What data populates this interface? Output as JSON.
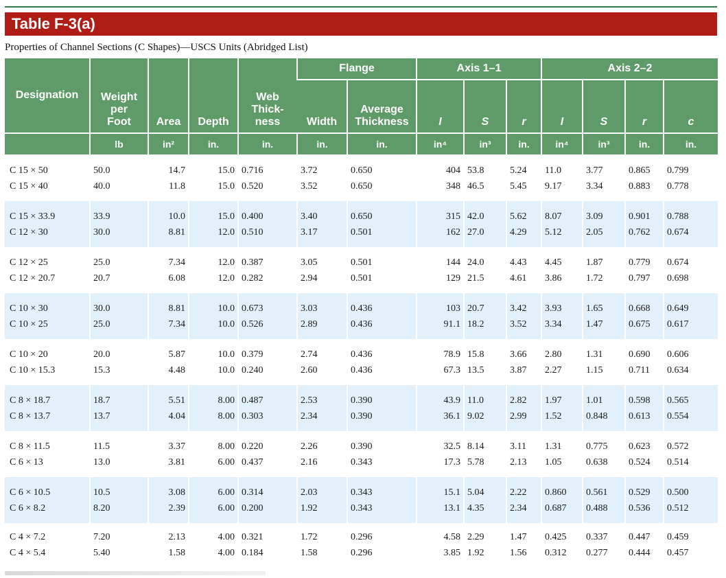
{
  "table_title": "Table F-3(a)",
  "caption": "Properties of Channel Sections (C Shapes)—USCS Units (Abridged List)",
  "headers": {
    "designation": "Designation",
    "weight": [
      "Weight",
      "per",
      "Foot"
    ],
    "area": "Area",
    "depth": "Depth",
    "web": [
      "Web",
      "Thick-",
      "ness"
    ],
    "flange_group": "Flange",
    "flange_width": "Width",
    "flange_thickness": [
      "Average",
      "Thickness"
    ],
    "axis11_group": "Axis 1–1",
    "axis22_group": "Axis 2–2",
    "I": "I",
    "S": "S",
    "r": "r",
    "c": "c"
  },
  "units": [
    "lb",
    "in²",
    "in.",
    "in.",
    "in.",
    "in.",
    "in⁴",
    "in³",
    "in.",
    "in⁴",
    "in³",
    "in.",
    "in."
  ],
  "rows": [
    {
      "band": "white",
      "lines": [
        [
          "C 15 × 50",
          "50.0",
          "14.7",
          "15.0",
          "0.716",
          "3.72",
          "0.650",
          "404",
          "53.8",
          "5.24",
          "11.0",
          "3.77",
          "0.865",
          "0.799"
        ],
        [
          "C 15 × 40",
          "40.0",
          "11.8",
          "15.0",
          "0.520",
          "3.52",
          "0.650",
          "348",
          "46.5",
          "5.45",
          "9.17",
          "3.34",
          "0.883",
          "0.778"
        ]
      ]
    },
    {
      "band": "blue",
      "lines": [
        [
          "C 15 × 33.9",
          "33.9",
          "10.0",
          "15.0",
          "0.400",
          "3.40",
          "0.650",
          "315",
          "42.0",
          "5.62",
          "8.07",
          "3.09",
          "0.901",
          "0.788"
        ],
        [
          "C 12 × 30",
          "30.0",
          "8.81",
          "12.0",
          "0.510",
          "3.17",
          "0.501",
          "162",
          "27.0",
          "4.29",
          "5.12",
          "2.05",
          "0.762",
          "0.674"
        ]
      ]
    },
    {
      "band": "white",
      "lines": [
        [
          "C 12 × 25",
          "25.0",
          "7.34",
          "12.0",
          "0.387",
          "3.05",
          "0.501",
          "144",
          "24.0",
          "4.43",
          "4.45",
          "1.87",
          "0.779",
          "0.674"
        ],
        [
          "C 12 × 20.7",
          "20.7",
          "6.08",
          "12.0",
          "0.282",
          "2.94",
          "0.501",
          "129",
          "21.5",
          "4.61",
          "3.86",
          "1.72",
          "0.797",
          "0.698"
        ]
      ]
    },
    {
      "band": "blue",
      "lines": [
        [
          "C 10 × 30",
          "30.0",
          "8.81",
          "10.0",
          "0.673",
          "3.03",
          "0.436",
          "103",
          "20.7",
          "3.42",
          "3.93",
          "1.65",
          "0.668",
          "0.649"
        ],
        [
          "C 10 × 25",
          "25.0",
          "7.34",
          "10.0",
          "0.526",
          "2.89",
          "0.436",
          "91.1",
          "18.2",
          "3.52",
          "3.34",
          "1.47",
          "0.675",
          "0.617"
        ]
      ]
    },
    {
      "band": "white",
      "lines": [
        [
          "C 10 × 20",
          "20.0",
          "5.87",
          "10.0",
          "0.379",
          "2.74",
          "0.436",
          "78.9",
          "15.8",
          "3.66",
          "2.80",
          "1.31",
          "0.690",
          "0.606"
        ],
        [
          "C 10 × 15.3",
          "15.3",
          "4.48",
          "10.0",
          "0.240",
          "2.60",
          "0.436",
          "67.3",
          "13.5",
          "3.87",
          "2.27",
          "1.15",
          "0.711",
          "0.634"
        ]
      ]
    },
    {
      "band": "blue",
      "lines": [
        [
          "C 8 × 18.7",
          "18.7",
          "5.51",
          "8.00",
          "0.487",
          "2.53",
          "0.390",
          "43.9",
          "11.0",
          "2.82",
          "1.97",
          "1.01",
          "0.598",
          "0.565"
        ],
        [
          "C 8 × 13.7",
          "13.7",
          "4.04",
          "8.00",
          "0.303",
          "2.34",
          "0.390",
          "36.1",
          "9.02",
          "2.99",
          "1.52",
          "0.848",
          "0.613",
          "0.554"
        ]
      ]
    },
    {
      "band": "white",
      "lines": [
        [
          "C 8 × 11.5",
          "11.5",
          "3.37",
          "8.00",
          "0.220",
          "2.26",
          "0.390",
          "32.5",
          "8.14",
          "3.11",
          "1.31",
          "0.775",
          "0.623",
          "0.572"
        ],
        [
          "C 6 × 13",
          "13.0",
          "3.81",
          "6.00",
          "0.437",
          "2.16",
          "0.343",
          "17.3",
          "5.78",
          "2.13",
          "1.05",
          "0.638",
          "0.524",
          "0.514"
        ]
      ]
    },
    {
      "band": "blue",
      "lines": [
        [
          "C 6 × 10.5",
          "10.5",
          "3.08",
          "6.00",
          "0.314",
          "2.03",
          "0.343",
          "15.1",
          "5.04",
          "2.22",
          "0.860",
          "0.561",
          "0.529",
          "0.500"
        ],
        [
          "C 6 × 8.2",
          "8.20",
          "2.39",
          "6.00",
          "0.200",
          "1.92",
          "0.343",
          "13.1",
          "4.35",
          "2.34",
          "0.687",
          "0.488",
          "0.536",
          "0.512"
        ]
      ]
    },
    {
      "band": "white",
      "lines": [
        [
          "C 4 × 7.2",
          "7.20",
          "2.13",
          "4.00",
          "0.321",
          "1.72",
          "0.296",
          "4.58",
          "2.29",
          "1.47",
          "0.425",
          "0.337",
          "0.447",
          "0.459"
        ],
        [
          "C 4 × 5.4",
          "5.40",
          "1.58",
          "4.00",
          "0.184",
          "1.58",
          "0.296",
          "3.85",
          "1.92",
          "1.56",
          "0.312",
          "0.277",
          "0.444",
          "0.457"
        ]
      ]
    }
  ]
}
